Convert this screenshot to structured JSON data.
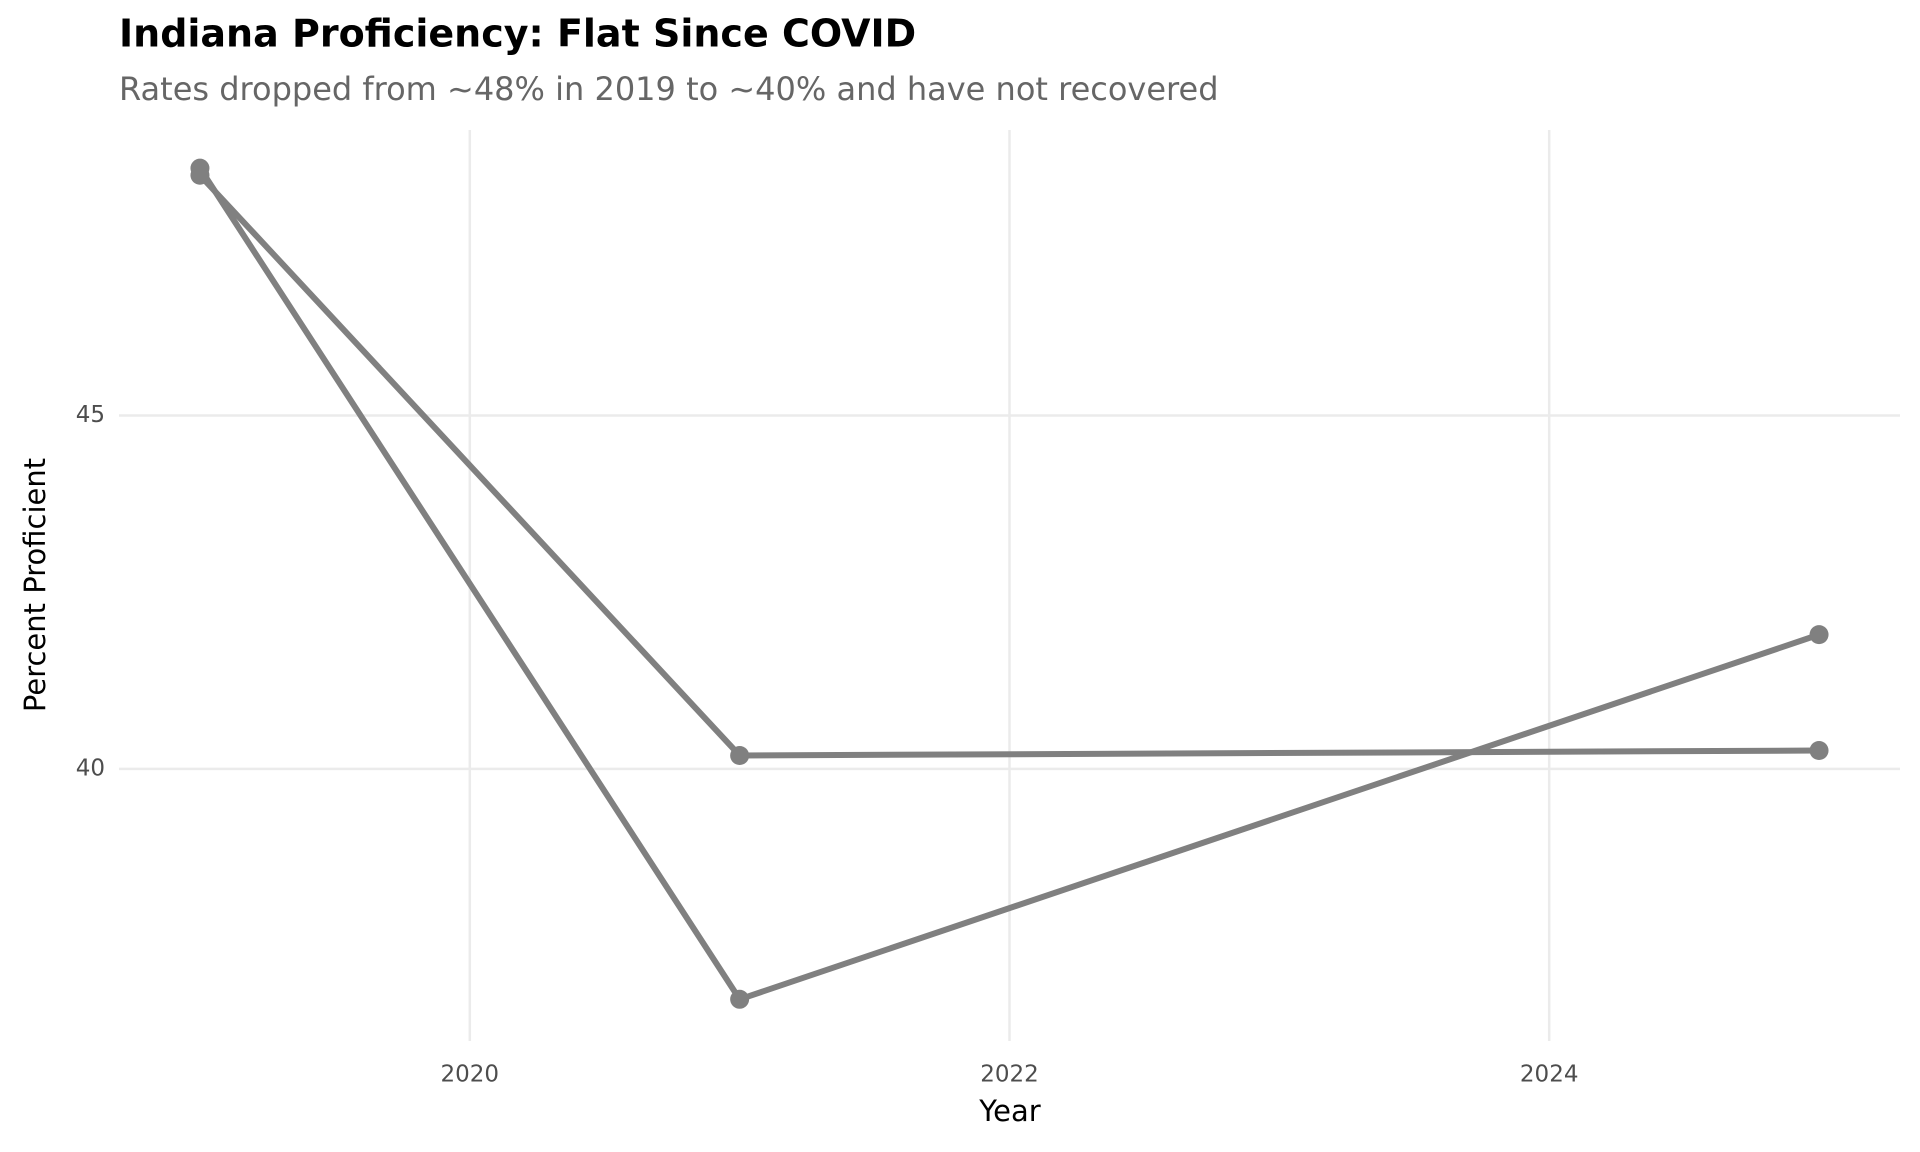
{
  "chart_data": {
    "type": "line",
    "title": "Indiana Proficiency: Flat Since COVID",
    "subtitle": "Rates dropped from ~48% in 2019 to ~40% and have not recovered",
    "x_label": "Year",
    "y_label": "Percent Proficient",
    "x": [
      2019,
      2021,
      2025
    ],
    "series": [
      {
        "color": "#808080",
        "values": [
          48.4,
          40.19,
          40.26
        ]
      },
      {
        "color": "#808080",
        "values": [
          48.5,
          36.74,
          41.9
        ]
      }
    ],
    "xlim": [
      2018.7,
      2025.3
    ],
    "xticks": [
      2020,
      2022,
      2024
    ],
    "ylim": [
      36.15,
      49.04
    ],
    "yticks": [
      40,
      45
    ],
    "grid": true
  }
}
